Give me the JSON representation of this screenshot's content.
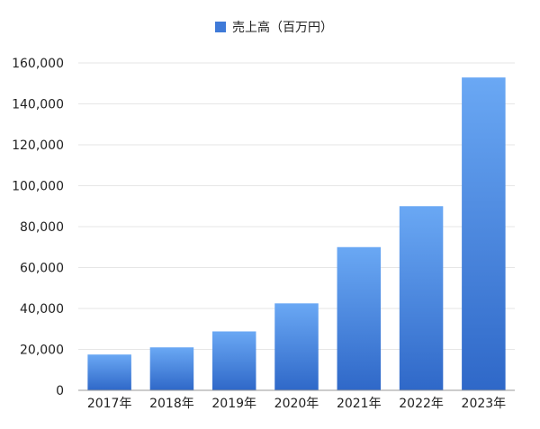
{
  "chart_data": {
    "type": "bar",
    "categories": [
      "2017年",
      "2018年",
      "2019年",
      "2020年",
      "2021年",
      "2022年",
      "2023年"
    ],
    "series": [
      {
        "name": "売上高（百万円）",
        "values": [
          17500,
          21000,
          28800,
          42500,
          70000,
          90000,
          152900
        ]
      }
    ],
    "ylim": [
      0,
      160000
    ],
    "yticks": [
      0,
      20000,
      40000,
      60000,
      80000,
      100000,
      120000,
      140000,
      160000
    ],
    "ytick_labels": [
      "0",
      "20,000",
      "40,000",
      "60,000",
      "80,000",
      "100,000",
      "120,000",
      "140,000",
      "160,000"
    ],
    "grid": true,
    "legend_position": "top-center",
    "colors": {
      "bar_top": "#6aa8f4",
      "bar_bottom": "#2f68c8",
      "legend_swatch": "#3f7ad8"
    }
  }
}
